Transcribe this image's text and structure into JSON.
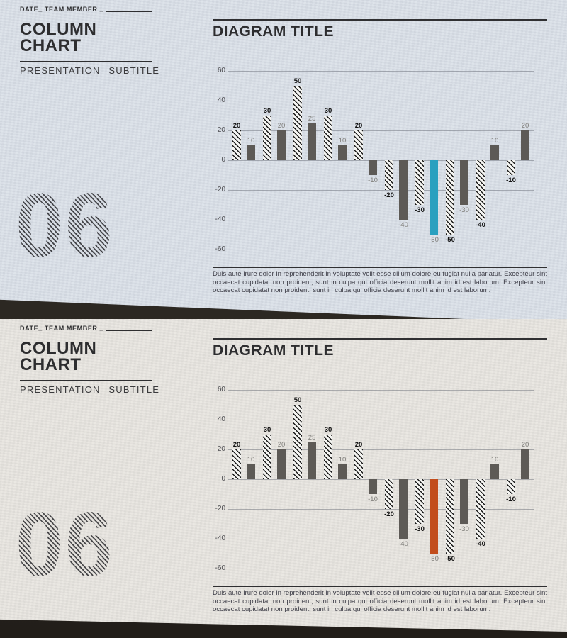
{
  "colors": {
    "page_background": "#2b2722",
    "solid_bar": "#5d5a56",
    "gridline": "#5f646e",
    "bold_label": "#121212",
    "gray_label": "#7e7d79"
  },
  "slides": [
    {
      "meta_label": "DATE_ TEAM MEMBER _",
      "title_line1": "COLUMN",
      "title_line2": "CHART",
      "subtitle": "PRESENTATION SUBTITLE",
      "slide_number": "06",
      "diagram_title": "DIAGRAM TITLE",
      "body_text": "Duis aute irure dolor in reprehenderit in voluptate velit esse cillum dolore eu fugiat nulla pariatur. Excepteur sint occaecat cupidatat non proident, sunt in culpa qui officia deserunt mollit anim id est laborum. Excepteur sint occaecat cupidatat non proident, sunt in culpa qui officia deserunt mollit anim id est laborum.",
      "paper_color": "#dae0e8",
      "accent_color": "#2aa0bf"
    },
    {
      "meta_label": "DATE_ TEAM MEMBER _",
      "title_line1": "COLUMN",
      "title_line2": "CHART",
      "subtitle": "PRESENTATION SUBTITLE",
      "slide_number": "06",
      "diagram_title": "DIAGRAM TITLE",
      "body_text": "Duis aute irure dolor in reprehenderit in voluptate velit esse cillum dolore eu fugiat nulla pariatur. Excepteur sint occaecat cupidatat non proident, sunt in culpa qui officia deserunt mollit anim id est laborum. Excepteur sint occaecat cupidatat non proident, sunt in culpa qui officia deserunt mollit anim id est laborum.",
      "paper_color": "#e8e5df",
      "accent_color": "#c24d1c"
    }
  ],
  "chart_data": {
    "type": "bar",
    "title": "DIAGRAM TITLE",
    "xlabel": "",
    "ylabel": "",
    "ylim": [
      -60,
      60
    ],
    "y_ticks": [
      60,
      40,
      20,
      0,
      -20,
      -40,
      -60
    ],
    "grid": true,
    "legend_position": "none",
    "series": [
      {
        "name": "hatched-series",
        "style": "diagonal-hatch",
        "label_style": "bold",
        "values": [
          20,
          30,
          50,
          30,
          20,
          -20,
          -30,
          -50,
          -40,
          -10
        ]
      },
      {
        "name": "solid-series",
        "style": "solid",
        "color": "#5d5a56",
        "label_style": "gray",
        "values": [
          10,
          20,
          25,
          10,
          -10,
          -40,
          -50,
          -30,
          10,
          20
        ],
        "highlight_index": 6,
        "highlight_color": "accent"
      }
    ]
  }
}
